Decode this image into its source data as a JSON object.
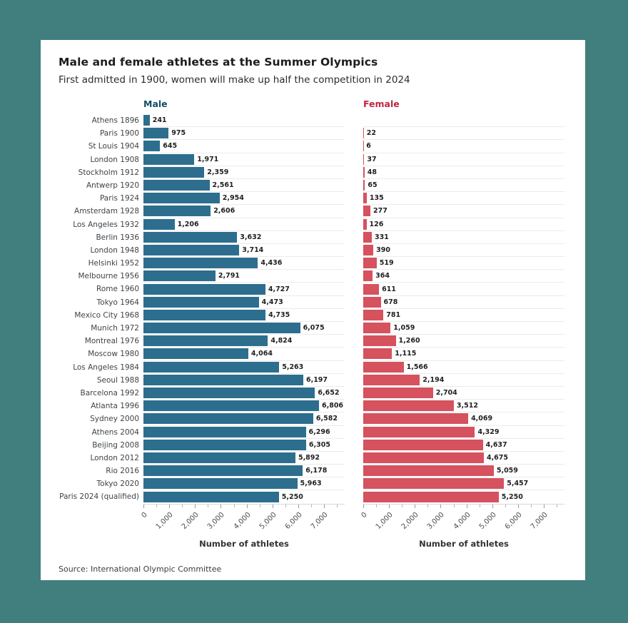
{
  "title": "Male and female athletes at the Summer Olympics",
  "subtitle": "First admitted in 1900, women will make up half the competition in 2024",
  "source": "Source: International Olympic Committee",
  "colors": {
    "page_background": "#417e7e",
    "card_background": "#ffffff",
    "male_bar": "#2d6e8e",
    "male_header_text": "#124e68",
    "female_bar": "#d5525e",
    "female_header_text": "#c02645",
    "gridline": "#ebebeb"
  },
  "chart_data": {
    "type": "bar",
    "orientation": "horizontal",
    "title": "Male and female athletes at the Summer Olympics",
    "subtitle": "First admitted in 1900, women will make up half the competition in 2024",
    "xlabel": "Number of athletes",
    "xlim": [
      0,
      7000
    ],
    "x_ticks": [
      "0",
      "1,000",
      "2,000",
      "3,000",
      "4,000",
      "5,000",
      "6,000",
      "7,000"
    ],
    "grid": "horizontal row separators",
    "legend_position": "column headers above each panel",
    "categories": [
      "Athens 1896",
      "Paris 1900",
      "St Louis 1904",
      "London 1908",
      "Stockholm 1912",
      "Antwerp 1920",
      "Paris 1924",
      "Amsterdam 1928",
      "Los Angeles 1932",
      "Berlin 1936",
      "London 1948",
      "Helsinki 1952",
      "Melbourne 1956",
      "Rome 1960",
      "Tokyo 1964",
      "Mexico City 1968",
      "Munich 1972",
      "Montreal 1976",
      "Moscow 1980",
      "Los Angeles 1984",
      "Seoul 1988",
      "Barcelona 1992",
      "Atlanta 1996",
      "Sydney 2000",
      "Athens 2004",
      "Beijing 2008",
      "London 2012",
      "Rio 2016",
      "Tokyo 2020",
      "Paris 2024 (qualified)"
    ],
    "series": [
      {
        "name": "Male",
        "color": "#2d6e8e",
        "values": [
          241,
          975,
          645,
          1971,
          2359,
          2561,
          2954,
          2606,
          1206,
          3632,
          3714,
          4436,
          2791,
          4727,
          4473,
          4735,
          6075,
          4824,
          4064,
          5263,
          6197,
          6652,
          6806,
          6582,
          6296,
          6305,
          5892,
          6178,
          5963,
          5250
        ]
      },
      {
        "name": "Female",
        "color": "#d5525e",
        "values": [
          null,
          22,
          6,
          37,
          48,
          65,
          135,
          277,
          126,
          331,
          390,
          519,
          364,
          611,
          678,
          781,
          1059,
          1260,
          1115,
          1566,
          2194,
          2704,
          3512,
          4069,
          4329,
          4637,
          4675,
          5059,
          5457,
          5250
        ]
      }
    ]
  }
}
